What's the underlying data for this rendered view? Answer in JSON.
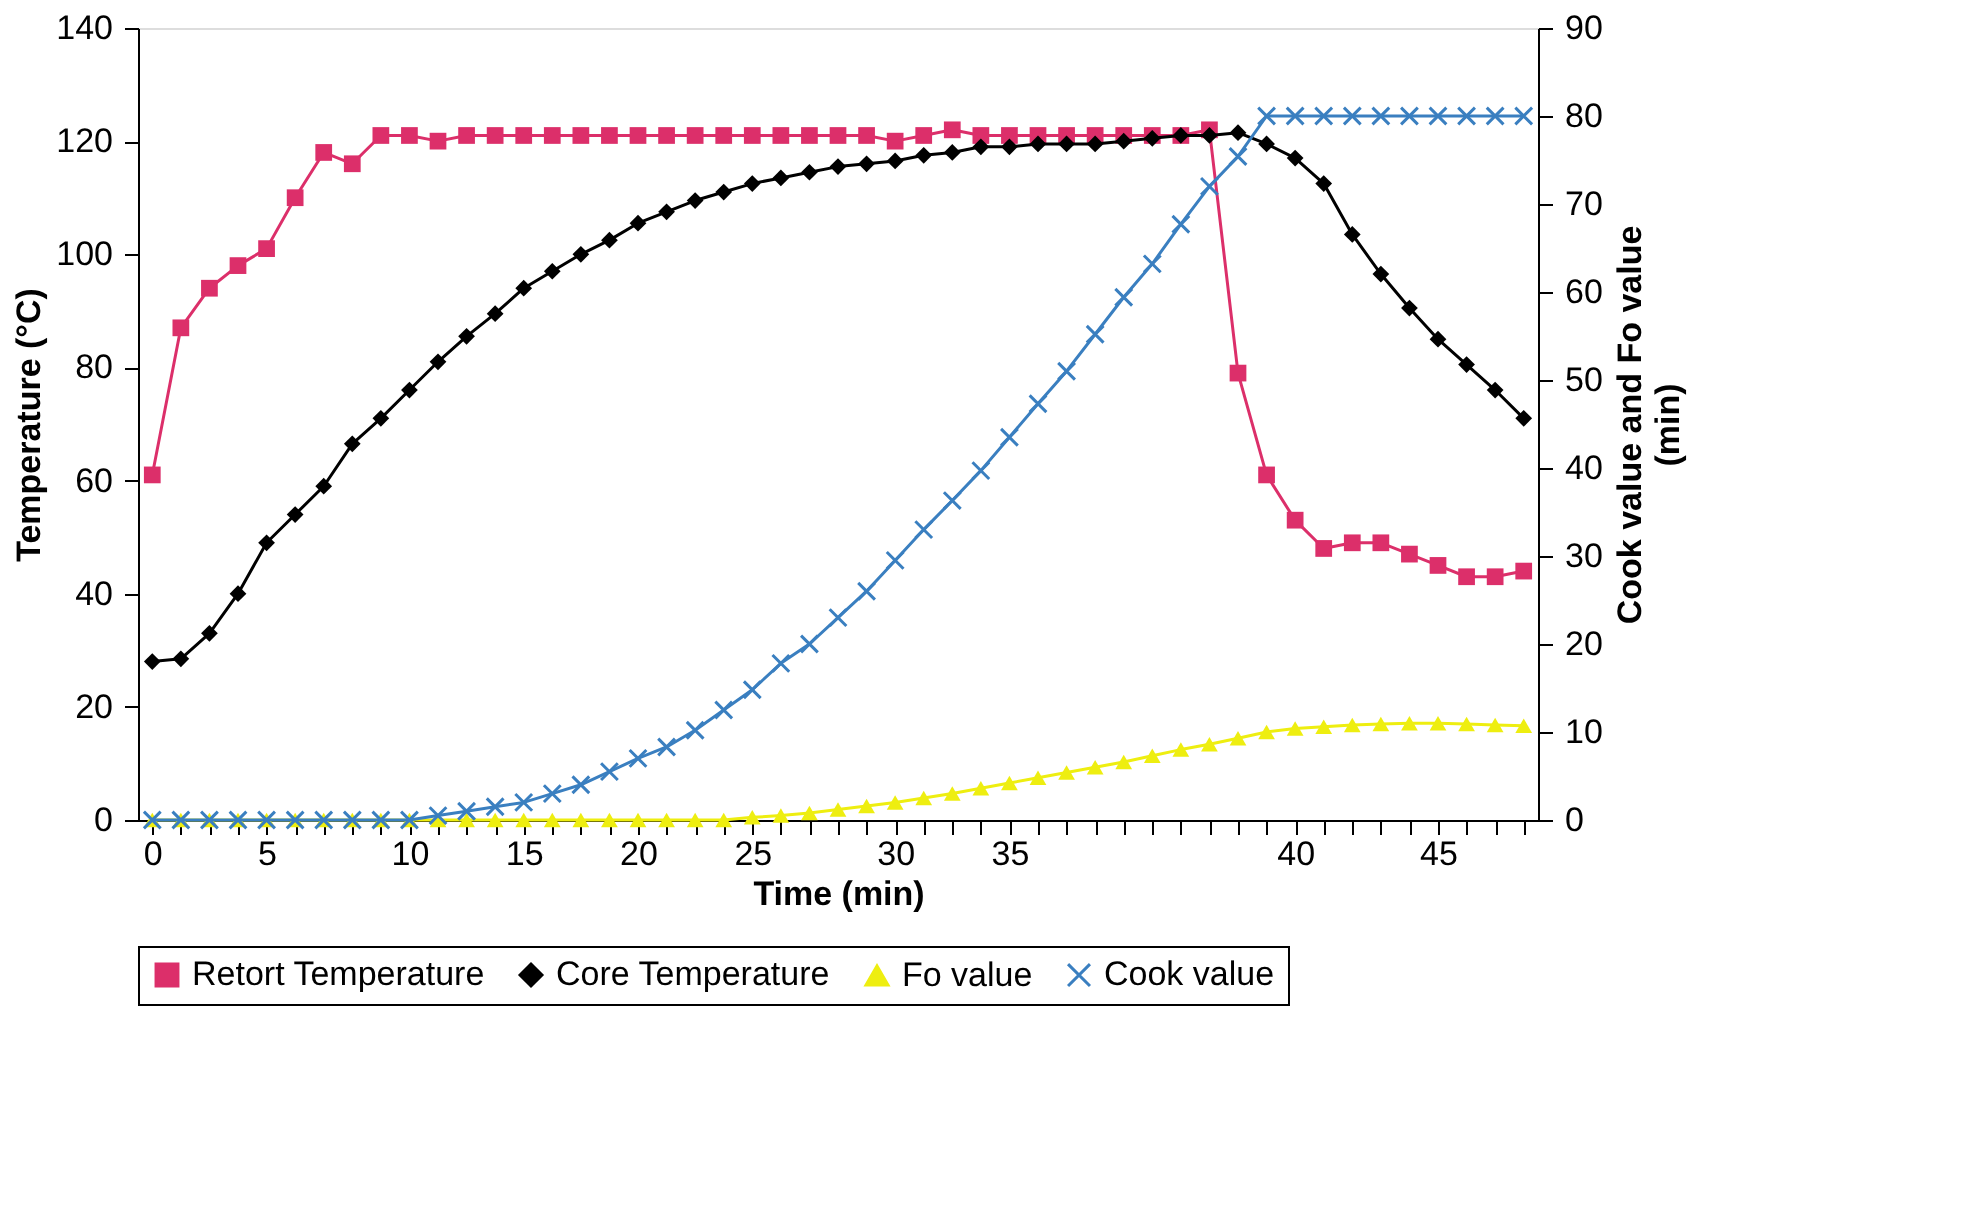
{
  "chart_data": {
    "type": "line",
    "xlabel": "Time (min)",
    "ylabel": "Temperature (°C)",
    "y2label": "Cook value and Fo value (min)",
    "categories": [
      "0",
      null,
      null,
      null,
      "5",
      null,
      null,
      null,
      null,
      "10",
      null,
      null,
      null,
      "15",
      null,
      null,
      null,
      "20",
      null,
      null,
      null,
      "25",
      null,
      null,
      null,
      null,
      "30",
      null,
      null,
      null,
      "35",
      null,
      null,
      null,
      null,
      null,
      null,
      null,
      null,
      null,
      "40",
      null,
      null,
      null,
      null,
      "45",
      null,
      null,
      null
    ],
    "ylim": [
      0,
      140
    ],
    "yticks": [
      0,
      20,
      40,
      60,
      80,
      100,
      120,
      140
    ],
    "y2lim": [
      0,
      90
    ],
    "y2ticks": [
      0,
      10,
      20,
      30,
      40,
      50,
      60,
      70,
      80,
      90
    ],
    "legend": "bottom",
    "series": [
      {
        "name": "Retort Temperature",
        "color": "#dc2f6a",
        "marker": "square",
        "values": [
          61,
          87,
          94,
          98,
          101,
          110,
          118,
          116,
          121,
          121,
          120,
          121,
          121,
          121,
          121,
          121,
          121,
          121,
          121,
          121,
          121,
          121,
          121,
          121,
          121,
          121,
          120,
          121,
          122,
          121,
          121,
          121,
          121,
          121,
          121,
          121,
          121,
          122,
          79,
          61,
          53,
          48,
          49,
          49,
          47,
          45,
          43,
          43,
          44
        ]
      },
      {
        "name": "Core Temperature",
        "color": "#000000",
        "marker": "diamond",
        "values": [
          28,
          28.5,
          33,
          40,
          49,
          54,
          59,
          66.5,
          71,
          76,
          81,
          85.5,
          89.5,
          94,
          97,
          100,
          102.5,
          105.5,
          107.5,
          109.5,
          111,
          112.5,
          113.5,
          114.5,
          115.5,
          116,
          116.5,
          117.5,
          118,
          119,
          119,
          119.5,
          119.5,
          119.5,
          120,
          120.5,
          121,
          121,
          121.5,
          119.5,
          117,
          112.5,
          103.5,
          96.5,
          90.5,
          85,
          80.5,
          76,
          71
        ]
      },
      {
        "name": "Fo value",
        "color": "#eeee10",
        "marker": "triangle",
        "axis": "y2",
        "values": [
          0,
          0,
          0,
          0,
          0,
          0,
          0,
          0,
          0,
          0,
          0,
          0,
          0,
          0,
          0,
          0,
          0,
          0,
          0,
          0,
          0,
          0.3,
          0.5,
          0.8,
          1.2,
          1.6,
          2,
          2.5,
          3,
          3.6,
          4.2,
          4.8,
          5.4,
          6,
          6.6,
          7.3,
          8,
          8.6,
          9.3,
          10,
          10.4,
          10.6,
          10.8,
          10.9,
          11,
          11,
          10.9,
          10.8,
          10.7
        ]
      },
      {
        "name": "Cook value",
        "color": "#3a7fc0",
        "marker": "cross",
        "axis": "y2",
        "values": [
          0,
          0,
          0,
          0,
          0,
          0,
          0,
          0,
          0,
          0,
          0.5,
          1,
          1.5,
          2,
          3,
          4,
          5.5,
          7,
          8.3,
          10.2,
          12.5,
          14.8,
          17.8,
          20,
          23,
          26,
          29.5,
          33,
          36.3,
          39.7,
          43.5,
          47.3,
          51,
          55.2,
          59.4,
          63.2,
          67.7,
          72,
          75.4,
          80,
          80,
          80,
          80,
          80,
          80,
          80,
          80,
          80,
          80
        ]
      }
    ]
  }
}
